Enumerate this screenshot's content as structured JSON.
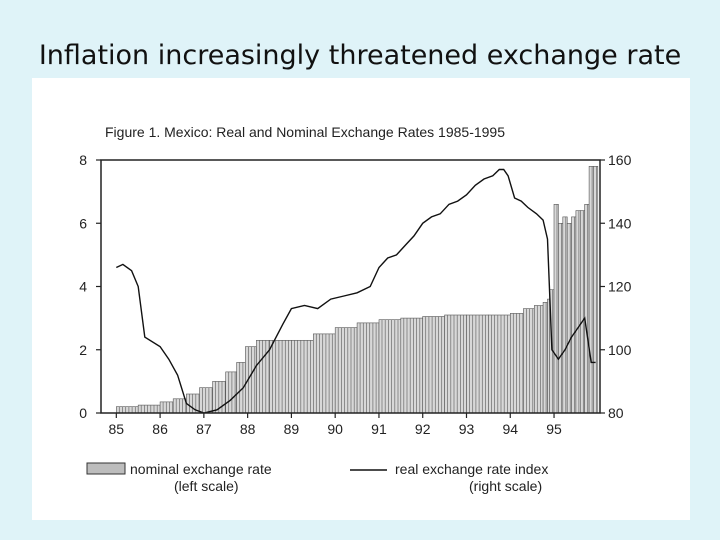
{
  "slide": {
    "title": "Inflation increasingly threatened exchange rate"
  },
  "chart_data": {
    "type": "bar",
    "title": "Figure 1.  Mexico:  Real and Nominal Exchange Rates 1985-1995",
    "x_ticks": [
      "85",
      "86",
      "87",
      "88",
      "89",
      "90",
      "91",
      "92",
      "93",
      "94",
      "95"
    ],
    "left_axis": {
      "ticks": [
        "0",
        "2",
        "4",
        "6",
        "8"
      ],
      "ylim": [
        0,
        8
      ]
    },
    "right_axis": {
      "ticks": [
        "80",
        "100",
        "120",
        "140",
        "160"
      ],
      "ylim": [
        80,
        160
      ]
    },
    "grid": false,
    "legend_position": "bottom",
    "series": [
      {
        "name": "nominal exchange rate",
        "axis_note": "(left scale)",
        "type": "bar",
        "axis": "left",
        "x": [
          1985.0,
          1985.5,
          1986.0,
          1986.3,
          1986.6,
          1986.9,
          1987.2,
          1987.5,
          1987.75,
          1987.95,
          1988.2,
          1988.5,
          1989.0,
          1989.5,
          1990.0,
          1990.5,
          1991.0,
          1991.5,
          1992.0,
          1992.5,
          1993.0,
          1993.5,
          1994.0,
          1994.3,
          1994.55,
          1994.75,
          1994.85,
          1994.9,
          1995.0,
          1995.1,
          1995.2,
          1995.3,
          1995.4,
          1995.5,
          1995.6,
          1995.7,
          1995.8,
          1995.9
        ],
        "values": [
          0.2,
          0.25,
          0.35,
          0.45,
          0.6,
          0.8,
          1.0,
          1.3,
          1.6,
          2.1,
          2.3,
          2.3,
          2.3,
          2.5,
          2.7,
          2.85,
          2.95,
          3.0,
          3.05,
          3.1,
          3.1,
          3.1,
          3.15,
          3.3,
          3.4,
          3.5,
          3.6,
          3.9,
          6.6,
          6.0,
          6.2,
          6.0,
          6.2,
          6.4,
          6.4,
          6.6,
          7.8,
          7.8
        ]
      },
      {
        "name": "real exchange rate index",
        "axis_note": "(right scale)",
        "type": "line",
        "axis": "right",
        "x": [
          1985.0,
          1985.15,
          1985.35,
          1985.5,
          1985.65,
          1986.0,
          1986.2,
          1986.4,
          1986.6,
          1986.8,
          1987.0,
          1987.3,
          1987.6,
          1987.9,
          1988.2,
          1988.5,
          1988.8,
          1989.0,
          1989.3,
          1989.6,
          1989.9,
          1990.2,
          1990.5,
          1990.8,
          1991.0,
          1991.2,
          1991.4,
          1991.6,
          1991.8,
          1992.0,
          1992.2,
          1992.4,
          1992.6,
          1992.8,
          1993.0,
          1993.2,
          1993.4,
          1993.6,
          1993.75,
          1993.85,
          1993.95,
          1994.1,
          1994.25,
          1994.4,
          1994.6,
          1994.75,
          1994.85,
          1994.95,
          1995.1,
          1995.25,
          1995.4,
          1995.55,
          1995.7,
          1995.85,
          1995.95
        ],
        "values": [
          126,
          127,
          125,
          120,
          104,
          101,
          97,
          92,
          83,
          81,
          80,
          81,
          84,
          88,
          95,
          100,
          108,
          113,
          114,
          113,
          116,
          117,
          118,
          120,
          126,
          129,
          130,
          133,
          136,
          140,
          142,
          143,
          146,
          147,
          149,
          152,
          154,
          155,
          157,
          157,
          155,
          148,
          147,
          145,
          143,
          141,
          135,
          100,
          97,
          100,
          104,
          107,
          110,
          96,
          96
        ]
      }
    ]
  }
}
